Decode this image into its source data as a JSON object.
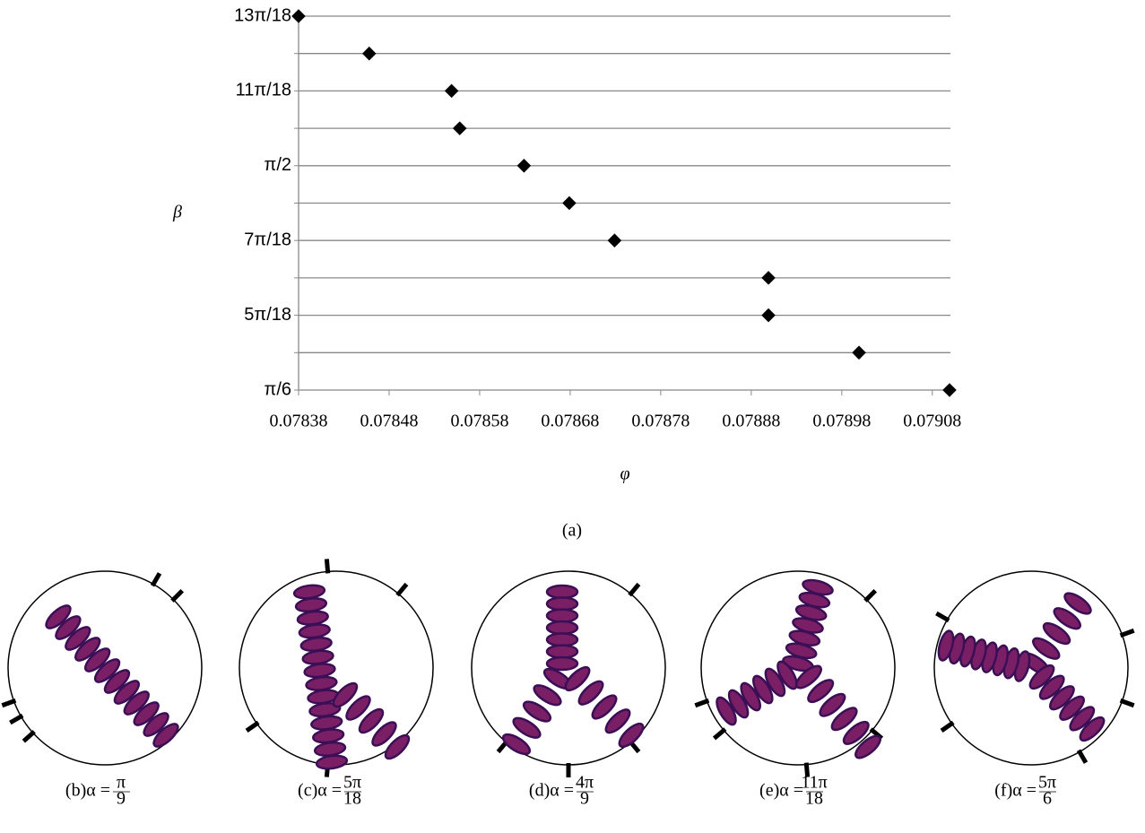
{
  "chart_data": {
    "type": "scatter",
    "x_label": "φ",
    "y_label": "β",
    "x": [
      0.07838,
      0.078458,
      0.078549,
      0.078558,
      0.078629,
      0.078679,
      0.078729,
      0.078899,
      0.078899,
      0.078999,
      0.079099
    ],
    "values": [
      2.2689,
      2.0944,
      1.9199,
      1.7453,
      1.5708,
      1.3963,
      1.2217,
      1.0472,
      0.8727,
      0.6981,
      0.5236
    ],
    "color": "#000000",
    "xlim": [
      0.07838,
      0.0791
    ],
    "xticks": [
      0.07838,
      0.07848,
      0.07858,
      0.07868,
      0.07878,
      0.07888,
      0.07898,
      0.07908
    ],
    "ylim": [
      0.5236,
      2.2689
    ],
    "yticks": [
      {
        "value": 0.5236,
        "label": "π/6"
      },
      {
        "value": 0.8727,
        "label": "5π/18"
      },
      {
        "value": 1.2217,
        "label": "7π/18"
      },
      {
        "value": 1.5708,
        "label": "π/2"
      },
      {
        "value": 1.9199,
        "label": "11π/18"
      },
      {
        "value": 2.2689,
        "label": "13π/18"
      }
    ],
    "minor_yticks": [
      0.6981,
      1.0472,
      1.3963,
      1.7453,
      2.0944
    ],
    "grid": true,
    "caption": "(a)"
  },
  "panels": [
    {
      "tag": "(b)α =",
      "num": "π",
      "den": "9"
    },
    {
      "tag": "(c)α =",
      "num": "5π",
      "den": "18"
    },
    {
      "tag": "(d)α =",
      "num": "4π",
      "den": "9"
    },
    {
      "tag": "(e)α =",
      "num": "11π",
      "den": "18"
    },
    {
      "tag": "(f)α =",
      "num": "5π",
      "den": "6"
    }
  ]
}
